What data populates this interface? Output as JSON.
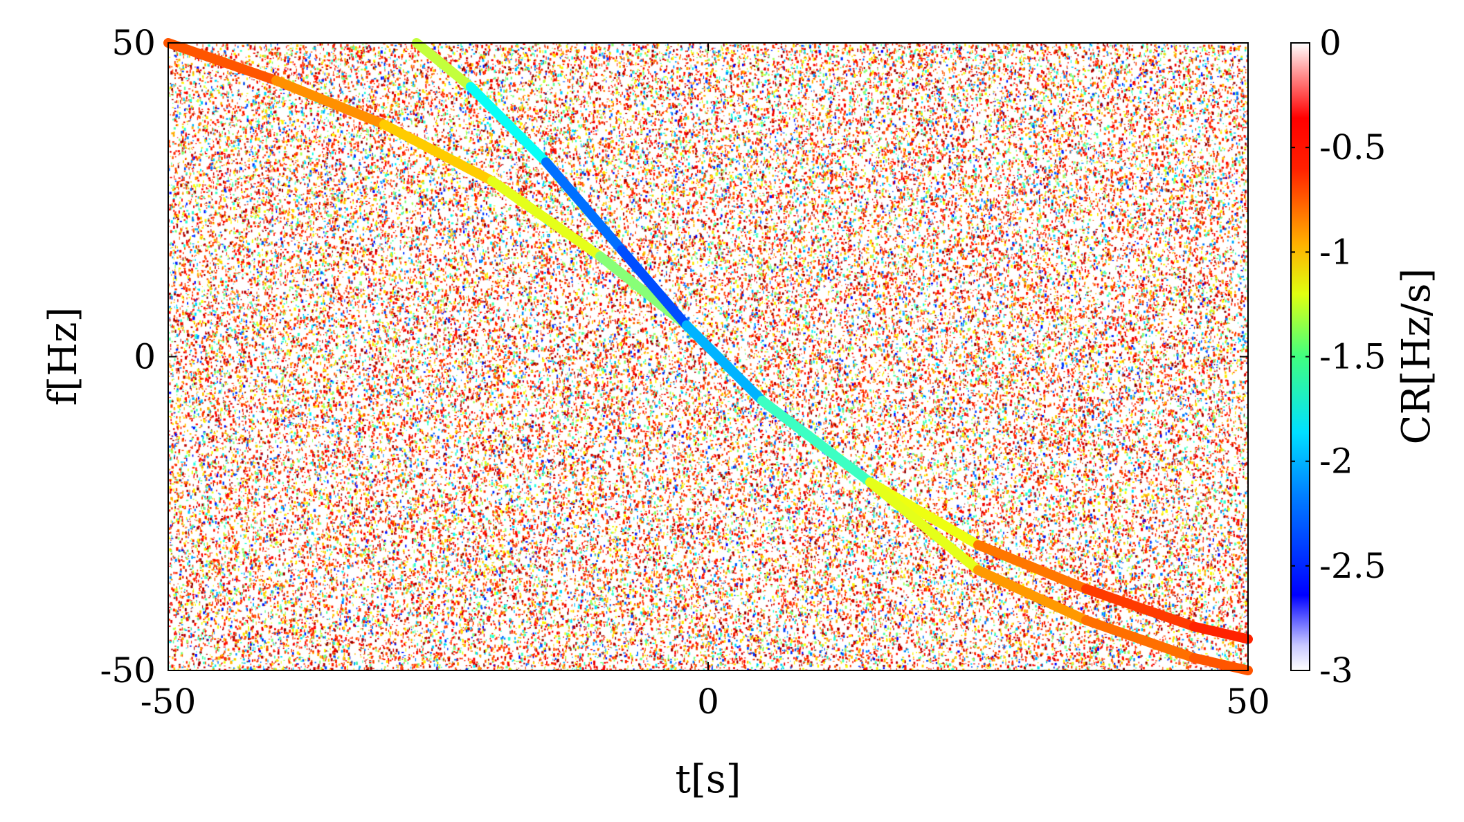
{
  "chart_data": {
    "type": "heatmap",
    "title": "",
    "xlabel": "t[s]",
    "ylabel": "f[Hz]",
    "xlim": [
      -50,
      50
    ],
    "ylim": [
      -50,
      50
    ],
    "x_ticks": [
      "-50",
      "0",
      "50"
    ],
    "x_tick_values": [
      -50,
      0,
      50
    ],
    "y_ticks": [
      "-50",
      "0",
      "50"
    ],
    "y_tick_values": [
      -50,
      0,
      50
    ],
    "colorbar": {
      "label": "CR[Hz/s]",
      "range": [
        -3,
        0
      ],
      "colormap": "jet",
      "ticks": [
        "0",
        "-0.5",
        "-1",
        "-1.5",
        "-2",
        "-2.5",
        "-3"
      ],
      "tick_values": [
        0,
        -0.5,
        -1,
        -1.5,
        -2,
        -2.5,
        -3
      ]
    },
    "background": "random noise chirp-rate estimates",
    "series": [
      {
        "t": [
          -50,
          -40,
          -30,
          -20,
          -10,
          -2,
          5,
          15,
          25,
          35,
          45,
          50
        ],
        "f": [
          50,
          44,
          37,
          28,
          16,
          5,
          -7,
          -20,
          -30,
          -37,
          -43,
          -45
        ],
        "cr": [
          -0.55,
          -0.7,
          -0.9,
          -1.05,
          -1.35,
          -1.6,
          -1.9,
          -1.5,
          -0.85,
          -0.6,
          -0.5,
          -0.45
        ]
      },
      {
        "t": [
          -27,
          -22,
          -15,
          -8,
          -2,
          5,
          15,
          25,
          35,
          45,
          50
        ],
        "f": [
          50,
          43,
          31,
          17,
          5,
          -7,
          -20,
          -34,
          -42,
          -48,
          -50
        ],
        "cr": [
          -1.0,
          -1.6,
          -2.1,
          -2.5,
          -2.3,
          -1.9,
          -1.5,
          -0.9,
          -0.75,
          -0.65,
          -0.6
        ]
      }
    ]
  }
}
